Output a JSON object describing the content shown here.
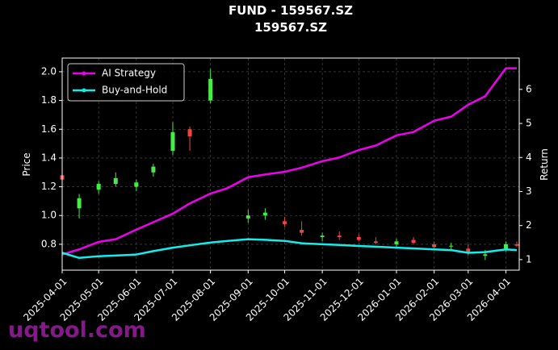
{
  "chart_data": {
    "type": "candlestick",
    "title": "FUND - 159567.SZ",
    "subtitle": "159567.SZ",
    "ylabel": "Price",
    "y2label": "Return",
    "watermark": "uqtool.com",
    "x": [
      "2025-04-01",
      "2025-04-15",
      "2025-05-01",
      "2025-05-15",
      "2025-06-01",
      "2025-06-15",
      "2025-07-01",
      "2025-07-15",
      "2025-08-01",
      "2025-08-15",
      "2025-09-01",
      "2025-09-15",
      "2025-10-01",
      "2025-10-15",
      "2025-11-01",
      "2025-11-15",
      "2025-12-01",
      "2025-12-15",
      "2026-01-01",
      "2026-01-15",
      "2026-02-01",
      "2026-02-15",
      "2026-03-01",
      "2026-03-15",
      "2026-04-01",
      "2026-04-10"
    ],
    "candles": {
      "up_color": "#44ee44",
      "down_color": "#ee4444",
      "open": [
        1.28,
        1.05,
        1.18,
        1.22,
        1.2,
        1.3,
        1.45,
        1.6,
        1.8,
        null,
        0.98,
        1.0,
        0.96,
        0.9,
        0.85,
        0.86,
        0.85,
        0.82,
        0.8,
        0.83,
        0.8,
        0.79,
        0.77,
        0.72,
        0.77,
        0.8
      ],
      "high": [
        1.32,
        1.15,
        1.24,
        1.3,
        1.25,
        1.36,
        1.65,
        1.62,
        2.02,
        null,
        1.04,
        1.05,
        0.99,
        0.96,
        0.88,
        0.89,
        0.87,
        0.85,
        0.84,
        0.85,
        0.82,
        0.81,
        0.8,
        0.76,
        0.82,
        0.82
      ],
      "low": [
        1.22,
        0.98,
        1.15,
        1.2,
        1.17,
        1.27,
        1.42,
        1.45,
        1.78,
        null,
        0.95,
        0.97,
        0.92,
        0.86,
        0.82,
        0.83,
        0.82,
        0.8,
        0.78,
        0.8,
        0.76,
        0.76,
        0.72,
        0.69,
        0.75,
        0.78
      ],
      "close": [
        1.25,
        1.12,
        1.22,
        1.26,
        1.23,
        1.34,
        1.58,
        1.55,
        1.95,
        null,
        1.0,
        1.02,
        0.94,
        0.88,
        0.86,
        0.85,
        0.83,
        0.81,
        0.82,
        0.81,
        0.78,
        0.79,
        0.74,
        0.73,
        0.8,
        0.79
      ]
    },
    "series": [
      {
        "name": "AI Strategy",
        "color": "#ee00ee",
        "axis": "y2",
        "values": [
          1.15,
          1.3,
          1.52,
          1.6,
          1.88,
          2.1,
          2.35,
          2.65,
          2.94,
          3.1,
          3.42,
          3.5,
          3.58,
          3.7,
          3.89,
          4.0,
          4.22,
          4.35,
          4.65,
          4.75,
          5.08,
          5.2,
          5.55,
          5.8,
          6.62,
          6.62
        ]
      },
      {
        "name": "Buy-and-Hold",
        "color": "#11eeee",
        "axis": "y2",
        "values": [
          1.2,
          1.05,
          1.1,
          1.12,
          1.15,
          1.25,
          1.35,
          1.42,
          1.5,
          1.55,
          1.6,
          1.58,
          1.55,
          1.48,
          1.45,
          1.43,
          1.4,
          1.38,
          1.35,
          1.33,
          1.3,
          1.28,
          1.2,
          1.22,
          1.3,
          1.28
        ]
      }
    ],
    "xlim": [
      "2025-04-01",
      "2026-04-12"
    ],
    "xticks": [
      "2025-04-01",
      "2025-05-01",
      "2025-06-01",
      "2025-07-01",
      "2025-08-01",
      "2025-09-01",
      "2025-10-01",
      "2025-11-01",
      "2025-12-01",
      "2026-01-01",
      "2026-02-01",
      "2026-03-01",
      "2026-04-01"
    ],
    "ylim": [
      0.62,
      2.095
    ],
    "yticks": [
      0.8,
      {
        "value": 1.0,
        "label": "1.0"
      },
      1.2,
      1.4,
      1.6,
      1.8,
      {
        "value": 2.0,
        "label": "2.0"
      }
    ],
    "y2lim": [
      0.69,
      6.92
    ],
    "y2ticks": [
      1,
      2,
      3,
      4,
      5,
      6
    ],
    "grid": true,
    "legend": "upper left"
  }
}
